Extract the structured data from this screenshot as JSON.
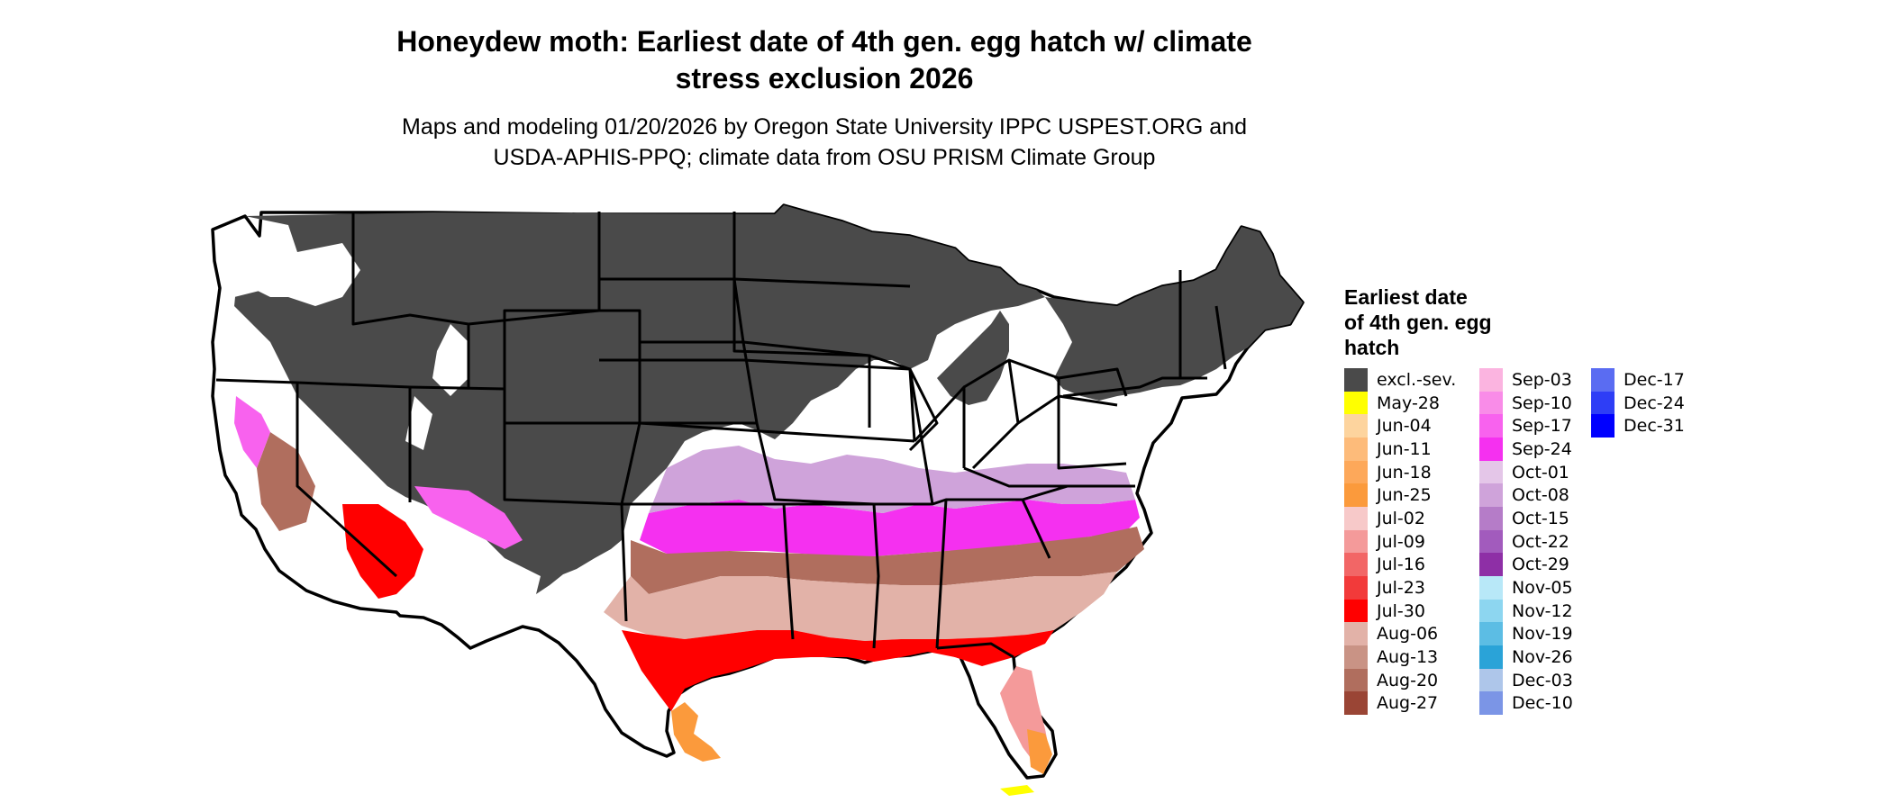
{
  "title": "Honeydew moth: Earliest date of 4th gen. egg hatch w/ climate stress exclusion 2026",
  "title_lines": [
    "Honeydew moth: Earliest date of 4th gen. egg hatch w/ climate",
    "stress exclusion 2026"
  ],
  "subtitle_lines": [
    "Maps and modeling 01/20/2026 by Oregon State University IPPC USPEST.ORG and",
    "USDA-APHIS-PPQ; climate data from OSU PRISM Climate Group"
  ],
  "legend": {
    "title_lines": [
      "Earliest date",
      "of 4th gen. egg",
      "hatch"
    ],
    "columns": [
      [
        {
          "label": "excl.-sev.",
          "color": "#4a4a4a"
        },
        {
          "label": "May-28",
          "color": "#ffff00"
        },
        {
          "label": "Jun-04",
          "color": "#fdd49e"
        },
        {
          "label": "Jun-11",
          "color": "#fdbb7a"
        },
        {
          "label": "Jun-18",
          "color": "#fda85a"
        },
        {
          "label": "Jun-25",
          "color": "#fb9a3c"
        },
        {
          "label": "Jul-02",
          "color": "#f7c9c9"
        },
        {
          "label": "Jul-09",
          "color": "#f49a9a"
        },
        {
          "label": "Jul-16",
          "color": "#f26666"
        },
        {
          "label": "Jul-23",
          "color": "#f23a3a"
        },
        {
          "label": "Jul-30",
          "color": "#ff0000"
        },
        {
          "label": "Aug-06",
          "color": "#e2b2a8"
        },
        {
          "label": "Aug-13",
          "color": "#c99385"
        },
        {
          "label": "Aug-20",
          "color": "#b06e5e"
        },
        {
          "label": "Aug-27",
          "color": "#9a4535"
        }
      ],
      [
        {
          "label": "Sep-03",
          "color": "#fbb4e0"
        },
        {
          "label": "Sep-10",
          "color": "#f98ce8"
        },
        {
          "label": "Sep-17",
          "color": "#f862ee"
        },
        {
          "label": "Sep-24",
          "color": "#f530f0"
        },
        {
          "label": "Oct-01",
          "color": "#e4c6e8"
        },
        {
          "label": "Oct-08",
          "color": "#cfa3da"
        },
        {
          "label": "Oct-15",
          "color": "#b57cc8"
        },
        {
          "label": "Oct-22",
          "color": "#a25bbd"
        },
        {
          "label": "Oct-29",
          "color": "#8e2fa6"
        },
        {
          "label": "Nov-05",
          "color": "#b8e8f8"
        },
        {
          "label": "Nov-12",
          "color": "#8dd6f0"
        },
        {
          "label": "Nov-19",
          "color": "#5cbde4"
        },
        {
          "label": "Nov-26",
          "color": "#2aa3d8"
        },
        {
          "label": "Dec-03",
          "color": "#aec6ea"
        },
        {
          "label": "Dec-10",
          "color": "#7b95e6"
        }
      ],
      [
        {
          "label": "Dec-17",
          "color": "#5a6cf2"
        },
        {
          "label": "Dec-24",
          "color": "#2e3ef6"
        },
        {
          "label": "Dec-31",
          "color": "#0000ff"
        }
      ]
    ]
  },
  "map_colors": {
    "excluded": "#4a4a4a",
    "no_data": "#ffffff",
    "border": "#000000"
  }
}
